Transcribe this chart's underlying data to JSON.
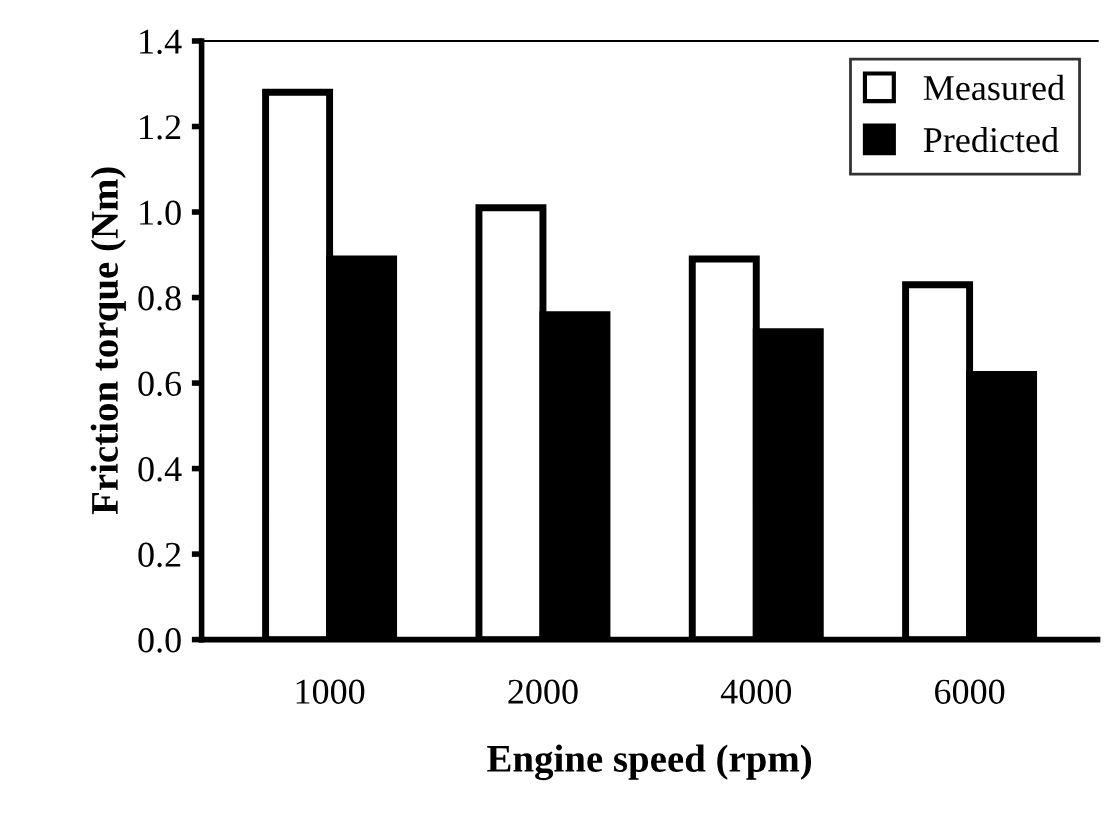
{
  "chart_data": {
    "type": "bar",
    "xlabel": "Engine speed (rpm)",
    "ylabel": "Friction torque (Nm)",
    "categories": [
      "1000",
      "2000",
      "4000",
      "6000"
    ],
    "series": [
      {
        "name": "Measured",
        "color": "#ffffff",
        "values": [
          1.28,
          1.01,
          0.89,
          0.83
        ]
      },
      {
        "name": "Predicted",
        "color": "#000000",
        "values": [
          0.89,
          0.76,
          0.72,
          0.62
        ]
      }
    ],
    "ylim": [
      0,
      1.4
    ],
    "yticks": [
      {
        "value": 0,
        "label": "0.0"
      },
      0.2,
      0.4,
      0.6,
      0.8,
      {
        "value": 1,
        "label": "1.0"
      },
      1.2,
      1.4
    ],
    "grid": false,
    "legend": "top right"
  }
}
